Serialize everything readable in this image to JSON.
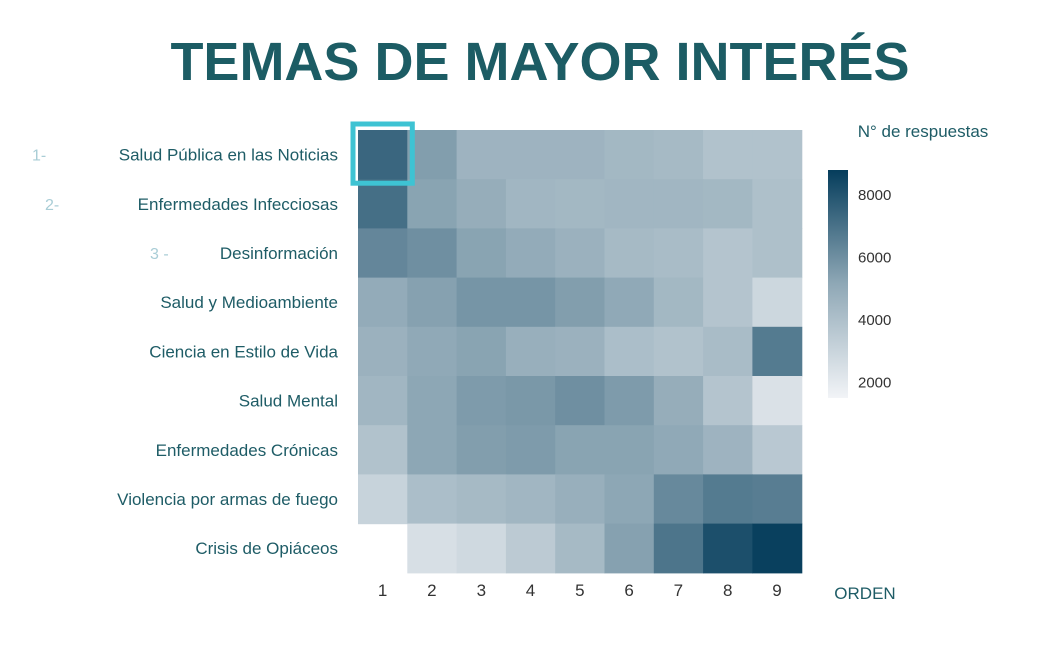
{
  "chart_data": {
    "type": "heatmap",
    "title": "TEMAS DE MAYOR INTERÉS",
    "xlabel": "ORDEN",
    "colorbar_label": "N° de respuestas",
    "colorbar_ticks": [
      8000,
      6000,
      4000,
      2000
    ],
    "colorbar_range": [
      1500,
      8800
    ],
    "colors": {
      "low": "#f2f4f7",
      "mid": "#8fa8b6",
      "high": "#053d5c",
      "title": "#1c5c64",
      "highlight": "#3ec3d3",
      "rank": "#a9cdd6"
    },
    "x": [
      "1",
      "2",
      "3",
      "4",
      "5",
      "6",
      "7",
      "8",
      "9"
    ],
    "rows": [
      {
        "rank": "1-",
        "label": "Salud Pública en las Noticias",
        "values": [
          7400,
          5500,
          4600,
          4600,
          4600,
          4400,
          4300,
          3900,
          3900
        ]
      },
      {
        "rank": "2-",
        "label": "Enfermedades Infecciosas",
        "values": [
          7100,
          5300,
          4900,
          4500,
          4400,
          4500,
          4500,
          4400,
          4000
        ]
      },
      {
        "rank": "3 -",
        "label": "Desinformación",
        "values": [
          6300,
          6000,
          5300,
          5000,
          4700,
          4300,
          4200,
          3800,
          4000
        ]
      },
      {
        "rank": "",
        "label": "Salud y Medioambiente",
        "values": [
          5000,
          5400,
          5800,
          5800,
          5500,
          5100,
          4400,
          3800,
          2900
        ]
      },
      {
        "rank": "",
        "label": "Ciencia en Estilo de Vida",
        "values": [
          4700,
          5100,
          5300,
          4800,
          4700,
          4100,
          3900,
          4200,
          6700
        ]
      },
      {
        "rank": "",
        "label": "Salud Mental",
        "values": [
          4500,
          5200,
          5600,
          5700,
          6000,
          5600,
          4900,
          3800,
          2400
        ]
      },
      {
        "rank": "",
        "label": "Enfermedades Crónicas",
        "values": [
          3900,
          5200,
          5500,
          5600,
          5300,
          5300,
          5100,
          4600,
          3600
        ]
      },
      {
        "rank": "",
        "label": "Violencia por armas de fuego",
        "values": [
          3100,
          4100,
          4300,
          4500,
          4800,
          5200,
          6200,
          6700,
          6600
        ]
      },
      {
        "rank": "",
        "label": "Crisis de Opiáceos",
        "values": [
          null,
          2500,
          2800,
          3500,
          4300,
          5400,
          6900,
          8200,
          8700
        ]
      }
    ],
    "highlight": {
      "row": 0,
      "col": 0
    }
  }
}
